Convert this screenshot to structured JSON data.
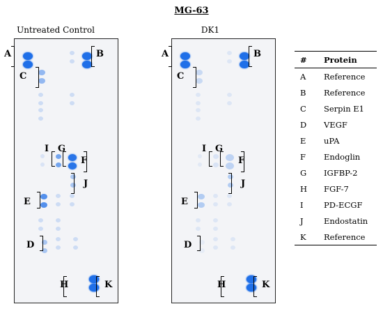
{
  "figure_title": "MG-63",
  "panels": [
    {
      "title": "Untreated Control",
      "labels": [
        "A",
        "B",
        "C",
        "D",
        "E",
        "F",
        "G",
        "H",
        "I",
        "J",
        "K"
      ],
      "spot_levels": {
        "A": 1.0,
        "B": 1.0,
        "C": 0.45,
        "D": 0.35,
        "E": 0.75,
        "F": 0.95,
        "G": 0.6,
        "H": 0.95,
        "I": 0.12,
        "J": 0.35,
        "K": 0.95
      }
    },
    {
      "title": "DK1",
      "labels": [
        "A",
        "B",
        "C",
        "D",
        "E",
        "F",
        "G",
        "H",
        "I",
        "J",
        "K"
      ],
      "spot_levels": {
        "A": 1.0,
        "B": 1.0,
        "C": 0.2,
        "D": 0.05,
        "E": 0.3,
        "F": 0.25,
        "G": 0.12,
        "H": 0.9,
        "I": 0.08,
        "J": 0.3,
        "K": 0.9
      }
    }
  ],
  "legend": {
    "headers": [
      "#",
      "Protein"
    ],
    "rows": [
      {
        "code": "A",
        "protein": "Reference"
      },
      {
        "code": "B",
        "protein": "Reference"
      },
      {
        "code": "C",
        "protein": "Serpin E1"
      },
      {
        "code": "D",
        "protein": "VEGF"
      },
      {
        "code": "E",
        "protein": "uPA"
      },
      {
        "code": "F",
        "protein": "Endoglin"
      },
      {
        "code": "G",
        "protein": "IGFBP-2"
      },
      {
        "code": "H",
        "protein": "FGF-7"
      },
      {
        "code": "I",
        "protein": "PD-ECGF"
      },
      {
        "code": "J",
        "protein": "Endostatin"
      },
      {
        "code": "K",
        "protein": "Reference"
      }
    ]
  },
  "colors": {
    "spot": "#1f6fe8",
    "membrane": "#f3f4f7"
  }
}
